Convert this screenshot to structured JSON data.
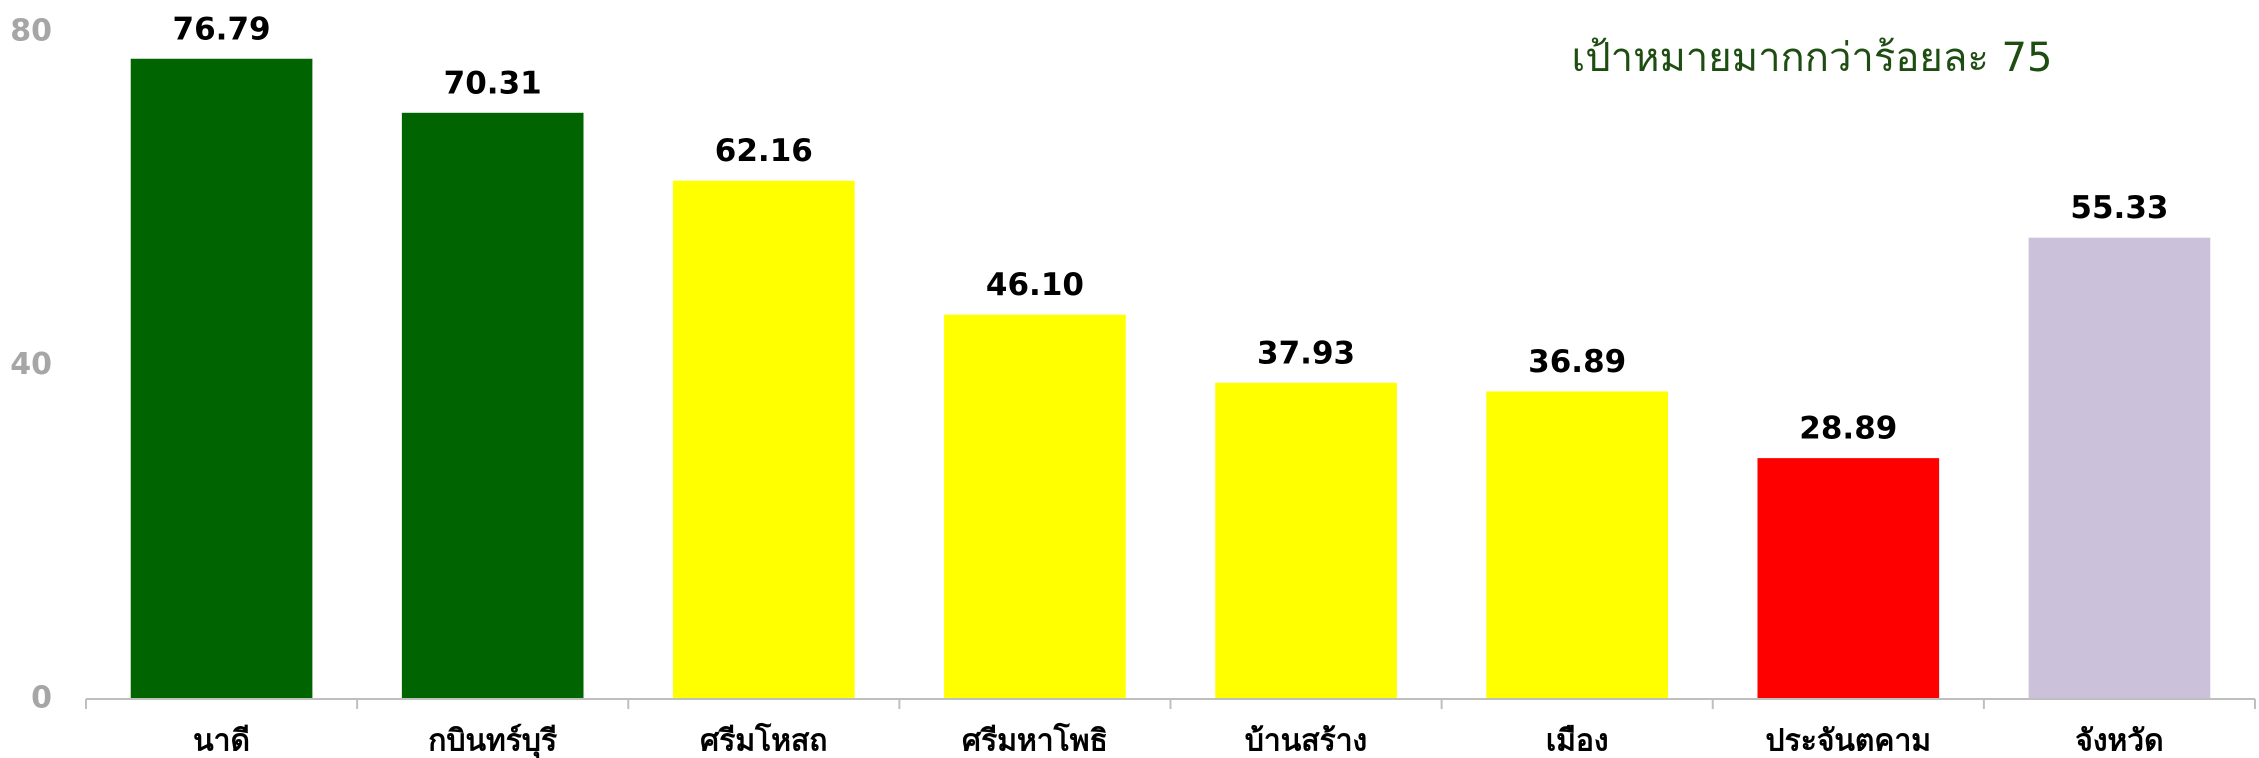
{
  "chart_data": {
    "type": "bar",
    "annotation": "เป้าหมายมากกว่าร้อยละ 75",
    "categories": [
      "นาดี",
      "กบินทร์บุรี",
      "ศรีมโหสถ",
      "ศรีมหาโพธิ",
      "บ้านสร้าง",
      "เมือง",
      "ประจันตคาม",
      "จังหวัด"
    ],
    "values": [
      76.79,
      70.31,
      62.16,
      46.1,
      37.93,
      36.89,
      28.89,
      55.33
    ],
    "value_labels": [
      "76.79",
      "70.31",
      "62.16",
      "46.10",
      "37.93",
      "36.89",
      "28.89",
      "55.33"
    ],
    "colors": [
      "#006400",
      "#006400",
      "#ffff00",
      "#ffff00",
      "#ffff00",
      "#ffff00",
      "#ff0000",
      "#ccc1da"
    ],
    "ylim": [
      0,
      80
    ],
    "yticks": [
      0,
      40,
      80
    ],
    "grid": false
  }
}
